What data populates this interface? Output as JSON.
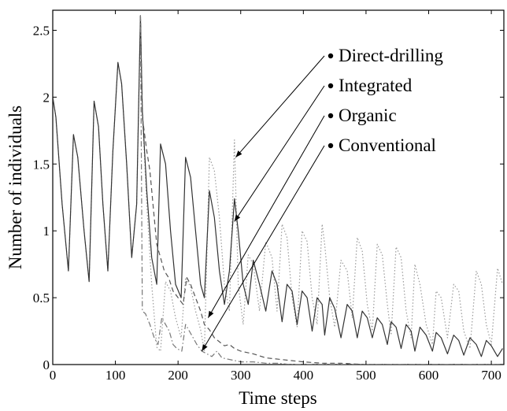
{
  "chart_data": {
    "type": "line",
    "title": "",
    "xlabel": "Time steps",
    "ylabel": "Number of individuals",
    "xlim": [
      0,
      720
    ],
    "ylim": [
      0,
      2.65
    ],
    "xticks": [
      0,
      100,
      200,
      300,
      400,
      500,
      600,
      700
    ],
    "yticks": [
      0,
      0.5,
      1,
      1.5,
      2,
      2.5
    ],
    "xtick_labels": [
      "0",
      "100",
      "200",
      "300",
      "400",
      "500",
      "600",
      "700"
    ],
    "ytick_labels": [
      "0",
      "0.5",
      "1",
      "1.5",
      "2",
      "2.5"
    ],
    "grid": false,
    "legend": {
      "placement": "top-right",
      "style": "bulleted labels with arrows pointing to curves"
    },
    "series": [
      {
        "name": "Direct-drilling",
        "style": "dotted",
        "color": "#9a9a9a",
        "x": [
          0,
          5,
          15,
          25,
          33,
          40,
          50,
          58,
          66,
          73,
          80,
          88,
          96,
          104,
          110,
          118,
          126,
          134,
          140,
          143,
          150,
          158,
          166,
          172,
          180,
          188,
          196,
          205,
          212,
          220,
          228,
          236,
          242,
          250,
          258,
          266,
          274,
          282,
          290,
          296,
          304,
          312,
          320,
          330,
          340,
          350,
          358,
          366,
          374,
          382,
          390,
          398,
          406,
          414,
          422,
          430,
          434,
          442,
          450,
          460,
          470,
          478,
          486,
          494,
          502,
          510,
          518,
          526,
          534,
          540,
          548,
          556,
          564,
          572,
          578,
          586,
          596,
          606,
          612,
          620,
          630,
          640,
          648,
          656,
          666,
          676,
          684,
          692,
          700,
          710,
          718
        ],
        "y": [
          2.0,
          1.85,
          1.2,
          0.7,
          1.72,
          1.55,
          1.0,
          0.62,
          1.97,
          1.78,
          1.2,
          0.7,
          1.6,
          2.26,
          2.1,
          1.5,
          0.8,
          1.2,
          2.61,
          1.9,
          1.2,
          0.6,
          0.13,
          0.1,
          0.62,
          0.55,
          0.35,
          0.2,
          0.65,
          0.58,
          0.4,
          0.26,
          0.1,
          1.55,
          1.45,
          1.1,
          0.6,
          0.4,
          1.68,
          0.6,
          0.3,
          0.82,
          0.75,
          0.4,
          0.92,
          0.8,
          0.4,
          1.05,
          0.95,
          0.5,
          0.28,
          1.0,
          0.92,
          0.5,
          0.3,
          1.05,
          0.9,
          0.5,
          0.28,
          0.78,
          0.7,
          0.35,
          0.95,
          0.85,
          0.45,
          0.25,
          0.9,
          0.82,
          0.45,
          0.22,
          0.88,
          0.8,
          0.4,
          0.2,
          0.75,
          0.6,
          0.3,
          0.15,
          0.55,
          0.5,
          0.2,
          0.6,
          0.55,
          0.25,
          0.12,
          0.7,
          0.6,
          0.3,
          0.15,
          0.72,
          0.6
        ]
      },
      {
        "name": "Integrated",
        "style": "solid",
        "color": "#333333",
        "x": [
          0,
          5,
          15,
          25,
          33,
          40,
          50,
          58,
          66,
          73,
          80,
          88,
          96,
          104,
          110,
          118,
          126,
          134,
          140,
          143,
          150,
          158,
          166,
          172,
          180,
          188,
          196,
          205,
          212,
          220,
          228,
          236,
          242,
          250,
          258,
          266,
          274,
          282,
          290,
          296,
          304,
          312,
          320,
          330,
          340,
          350,
          358,
          366,
          374,
          382,
          390,
          398,
          406,
          414,
          422,
          430,
          434,
          442,
          450,
          460,
          470,
          478,
          486,
          494,
          502,
          510,
          518,
          526,
          534,
          540,
          548,
          556,
          564,
          572,
          578,
          586,
          596,
          606,
          612,
          620,
          630,
          640,
          648,
          656,
          666,
          676,
          684,
          692,
          700,
          710,
          718
        ],
        "y": [
          2.0,
          1.85,
          1.2,
          0.7,
          1.72,
          1.55,
          1.0,
          0.62,
          1.97,
          1.78,
          1.2,
          0.7,
          1.6,
          2.26,
          2.1,
          1.5,
          0.8,
          1.2,
          2.61,
          1.9,
          1.3,
          0.8,
          0.6,
          1.65,
          1.5,
          1.0,
          0.6,
          0.5,
          1.55,
          1.4,
          1.0,
          0.6,
          0.5,
          1.3,
          1.1,
          0.7,
          0.45,
          0.7,
          1.24,
          1.0,
          0.6,
          0.45,
          0.78,
          0.6,
          0.4,
          0.7,
          0.6,
          0.32,
          0.6,
          0.55,
          0.3,
          0.55,
          0.5,
          0.25,
          0.5,
          0.45,
          0.22,
          0.5,
          0.42,
          0.2,
          0.45,
          0.4,
          0.2,
          0.4,
          0.35,
          0.2,
          0.35,
          0.3,
          0.15,
          0.32,
          0.28,
          0.12,
          0.3,
          0.25,
          0.1,
          0.28,
          0.22,
          0.1,
          0.24,
          0.2,
          0.08,
          0.22,
          0.18,
          0.07,
          0.2,
          0.15,
          0.06,
          0.18,
          0.14,
          0.06,
          0.12
        ]
      },
      {
        "name": "Organic",
        "style": "dashed",
        "color": "#555555",
        "x": [
          140,
          143,
          150,
          155,
          160,
          166,
          172,
          178,
          185,
          192,
          200,
          208,
          214,
          220,
          228,
          236,
          242,
          250,
          258,
          266,
          274,
          282,
          290,
          300,
          320,
          340,
          360,
          380,
          400,
          430,
          460,
          500,
          560,
          620,
          680,
          718
        ],
        "y": [
          2.61,
          1.85,
          1.6,
          1.45,
          1.2,
          0.9,
          0.8,
          0.7,
          0.65,
          0.55,
          0.5,
          0.45,
          0.65,
          0.6,
          0.5,
          0.4,
          0.3,
          0.26,
          0.2,
          0.17,
          0.14,
          0.15,
          0.12,
          0.1,
          0.08,
          0.05,
          0.04,
          0.03,
          0.02,
          0.01,
          0.01,
          0.0,
          0.0,
          0.0,
          0.0,
          0.0
        ]
      },
      {
        "name": "Conventional",
        "style": "dash-dot",
        "color": "#777777",
        "x": [
          140,
          143,
          148,
          155,
          162,
          168,
          174,
          180,
          186,
          192,
          198,
          206,
          212,
          218,
          224,
          230,
          238,
          246,
          254,
          262,
          270,
          280,
          290,
          300,
          320,
          340,
          360,
          380,
          400,
          430,
          460,
          500,
          560,
          620,
          680,
          718
        ],
        "y": [
          2.61,
          0.4,
          0.38,
          0.3,
          0.2,
          0.15,
          0.35,
          0.3,
          0.25,
          0.15,
          0.12,
          0.1,
          0.3,
          0.25,
          0.2,
          0.15,
          0.1,
          0.08,
          0.06,
          0.1,
          0.05,
          0.04,
          0.03,
          0.02,
          0.02,
          0.01,
          0.01,
          0.0,
          0.0,
          0.0,
          0.0,
          0.0,
          0.0,
          0.0,
          0.0,
          0.0
        ]
      }
    ],
    "annotations": [
      {
        "label": "Direct-drilling",
        "points_to": {
          "x": 292,
          "y": 1.55
        }
      },
      {
        "label": "Integrated",
        "points_to": {
          "x": 290,
          "y": 1.07
        }
      },
      {
        "label": "Organic",
        "points_to": {
          "x": 248,
          "y": 0.35
        }
      },
      {
        "label": "Conventional",
        "points_to": {
          "x": 238,
          "y": 0.1
        }
      }
    ]
  }
}
